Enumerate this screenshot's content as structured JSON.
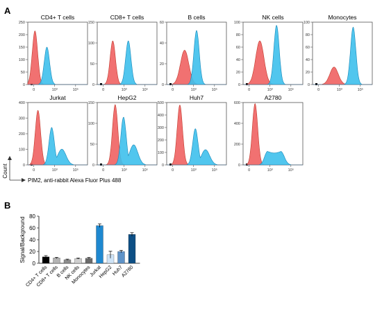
{
  "panel_labels": {
    "a": "A",
    "b": "B"
  },
  "flow_axis": {
    "y_label": "Count",
    "x_label": "PIM2, anti-rabbit Alexa Fluor Plus 488"
  },
  "colors": {
    "control_fill": "#f06262",
    "control_stroke": "#c0392b",
    "signal_fill": "#3ec0ec",
    "signal_stroke": "#1787b8"
  },
  "chart_data": [
    {
      "type": "area",
      "title": "CD4+ T cells",
      "ylim": [
        0,
        250
      ],
      "yticks": [
        "0",
        "50",
        "100",
        "150",
        "200",
        "250"
      ],
      "xticks": [
        "0",
        "10³",
        "10⁵"
      ],
      "series": [
        {
          "name": "",
          "color": "#f06262",
          "peak_x": 0.12,
          "peak_y": 215,
          "shape": "narrow"
        },
        {
          "name": "",
          "color": "#3ec0ec",
          "peak_x": 0.32,
          "peak_y": 150,
          "shape": "narrow"
        }
      ]
    },
    {
      "type": "area",
      "title": "CD8+ T cells",
      "ylim": [
        0,
        150
      ],
      "yticks": [
        "0",
        "50",
        "100",
        "150"
      ],
      "xticks": [
        "0",
        "10³",
        "10⁵"
      ],
      "series": [
        {
          "name": "",
          "color": "#f06262",
          "peak_x": 0.26,
          "peak_y": 105,
          "shape": "narrow"
        },
        {
          "name": "",
          "color": "#3ec0ec",
          "peak_x": 0.52,
          "peak_y": 105,
          "shape": "narrow"
        }
      ]
    },
    {
      "type": "area",
      "title": "B cells",
      "ylim": [
        0,
        60
      ],
      "yticks": [
        "0",
        "20",
        "40",
        "60"
      ],
      "xticks": [
        "0",
        "10³",
        "10⁵"
      ],
      "series": [
        {
          "name": "",
          "color": "#f06262",
          "peak_x": 0.3,
          "peak_y": 33,
          "shape": "wide"
        },
        {
          "name": "",
          "color": "#3ec0ec",
          "peak_x": 0.5,
          "peak_y": 52,
          "shape": "narrow"
        }
      ]
    },
    {
      "type": "area",
      "title": "NK cells",
      "ylim": [
        0,
        100
      ],
      "yticks": [
        "0",
        "20",
        "40",
        "60",
        "80",
        "100"
      ],
      "xticks": [
        "0",
        "10³",
        "10⁵"
      ],
      "series": [
        {
          "name": "",
          "color": "#f06262",
          "peak_x": 0.28,
          "peak_y": 70,
          "shape": "wide"
        },
        {
          "name": "",
          "color": "#3ec0ec",
          "peak_x": 0.56,
          "peak_y": 95,
          "shape": "narrow"
        }
      ]
    },
    {
      "type": "area",
      "title": "Monocytes",
      "ylim": [
        0,
        100
      ],
      "yticks": [
        "0",
        "20",
        "40",
        "60",
        "80",
        "100"
      ],
      "xticks": [
        "0",
        "10³",
        "10⁵"
      ],
      "series": [
        {
          "name": "",
          "color": "#f06262",
          "peak_x": 0.36,
          "peak_y": 28,
          "shape": "wide"
        },
        {
          "name": "",
          "color": "#3ec0ec",
          "peak_x": 0.68,
          "peak_y": 92,
          "shape": "narrow"
        }
      ]
    },
    {
      "type": "area",
      "title": "Jurkat",
      "ylim": [
        0,
        400
      ],
      "yticks": [
        "0",
        "100",
        "200",
        "300",
        "400"
      ],
      "xticks": [
        "0",
        "10³",
        "10⁵"
      ],
      "series": [
        {
          "name": "",
          "color": "#f06262",
          "peak_x": 0.17,
          "peak_y": 350,
          "shape": "narrow"
        },
        {
          "name": "",
          "color": "#3ec0ec",
          "peak_x": 0.4,
          "peak_y": 240,
          "shape": "shoulder"
        }
      ]
    },
    {
      "type": "area",
      "title": "HepG2",
      "ylim": [
        0,
        150
      ],
      "yticks": [
        "0",
        "50",
        "100",
        "150"
      ],
      "xticks": [
        "0",
        "10³",
        "10⁵"
      ],
      "series": [
        {
          "name": "",
          "color": "#f06262",
          "peak_x": 0.3,
          "peak_y": 145,
          "shape": "narrow"
        },
        {
          "name": "",
          "color": "#3ec0ec",
          "peak_x": 0.44,
          "peak_y": 115,
          "shape": "shoulder"
        }
      ]
    },
    {
      "type": "area",
      "title": "Huh7",
      "ylim": [
        0,
        500
      ],
      "yticks": [
        "0",
        "100",
        "200",
        "300",
        "400",
        "500"
      ],
      "xticks": [
        "0",
        "10³",
        "10⁵"
      ],
      "series": [
        {
          "name": "",
          "color": "#f06262",
          "peak_x": 0.22,
          "peak_y": 480,
          "shape": "narrow"
        },
        {
          "name": "",
          "color": "#3ec0ec",
          "peak_x": 0.48,
          "peak_y": 290,
          "shape": "shoulder"
        }
      ]
    },
    {
      "type": "area",
      "title": "A2780",
      "ylim": [
        0,
        600
      ],
      "yticks": [
        "0",
        "200",
        "400",
        "600"
      ],
      "xticks": [
        "0",
        "10³",
        "10⁵"
      ],
      "series": [
        {
          "name": "",
          "color": "#f06262",
          "peak_x": 0.2,
          "peak_y": 590,
          "shape": "narrow"
        },
        {
          "name": "",
          "color": "#3ec0ec",
          "peak_x": 0.5,
          "peak_y": 130,
          "shape": "broad"
        }
      ]
    },
    {
      "type": "bar",
      "title": "",
      "xlabel": "",
      "ylabel": "Signal/Background",
      "ylim": [
        0,
        80
      ],
      "yticks": [
        "0",
        "20",
        "40",
        "60",
        "80"
      ],
      "categories": [
        "CD4+ T cells",
        "CD8+ T cells",
        "B cells",
        "NK cells",
        "Monocytes",
        "Jurkat",
        "HepG2",
        "Huh7",
        "A2780"
      ],
      "values": [
        11,
        9,
        6,
        8,
        8.5,
        64,
        14.5,
        20,
        49
      ],
      "errors": [
        2,
        1,
        1,
        1,
        1.5,
        3,
        6,
        2,
        3
      ],
      "colors": [
        "#000000",
        "#b3b3b3",
        "#8c8c8c",
        "#cfcfcf",
        "#6b6b6b",
        "#1e88d0",
        "#cfe4f7",
        "#5f93c8",
        "#0d4f85"
      ]
    }
  ]
}
